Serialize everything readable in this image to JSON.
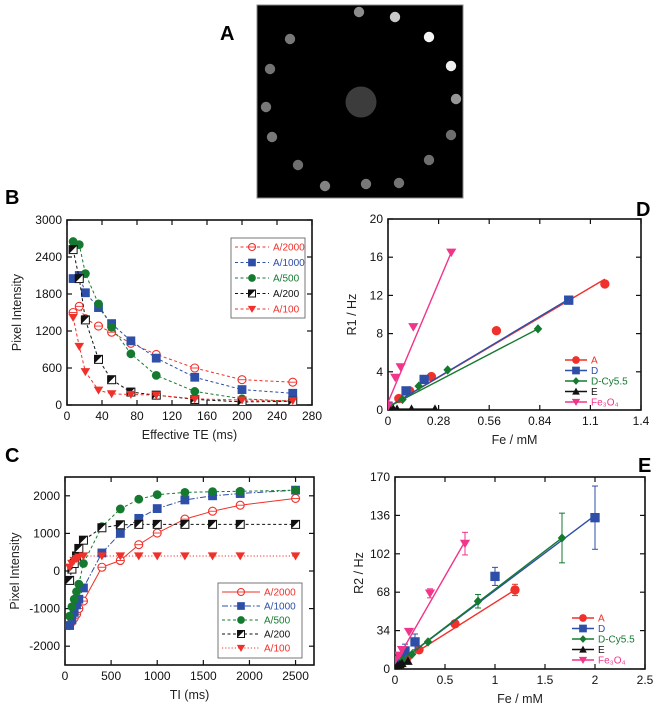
{
  "colors": {
    "red": "#f0302a",
    "red_light": "#f07070",
    "blue": "#2e4fa8",
    "green": "#157a30",
    "black": "#111111",
    "pink": "#f0358a"
  },
  "panel_a": {
    "letter": "A",
    "description": "Phantom MR image: dark background with ring of sample vials and central large disc",
    "spots": [
      {
        "gray": 140
      },
      {
        "gray": 200
      },
      {
        "gray": 245
      },
      {
        "gray": 240
      },
      {
        "gray": 150
      },
      {
        "gray": 110
      },
      {
        "gray": 110
      },
      {
        "gray": 115
      },
      {
        "gray": 120
      },
      {
        "gray": 130
      },
      {
        "gray": 110
      },
      {
        "gray": 120
      },
      {
        "gray": 120
      },
      {
        "gray": 115
      },
      {
        "gray": 120
      }
    ],
    "center_gray": 60
  },
  "chart_data": [
    {
      "id": "B",
      "letter": "B",
      "type": "scatter",
      "xlabel": "Effective TE (ms)",
      "ylabel": "Pixel Intensity",
      "xlim": [
        0,
        280
      ],
      "ylim": [
        0,
        3000
      ],
      "xticks": [
        0,
        40,
        80,
        120,
        160,
        200,
        240,
        280
      ],
      "yticks": [
        0,
        600,
        1200,
        1800,
        2400,
        3000
      ],
      "legend_position": "top-right",
      "series": [
        {
          "name": "A/2000",
          "color": "#f0302a",
          "marker": "open-circle-cross",
          "line": "dashed",
          "x": [
            7,
            14,
            21,
            36,
            51,
            73,
            102,
            146,
            200,
            258
          ],
          "y": [
            1500,
            1600,
            1400,
            1280,
            1180,
            1000,
            820,
            600,
            410,
            370
          ]
        },
        {
          "name": "A/1000",
          "color": "#2e4fa8",
          "marker": "square",
          "line": "dashed",
          "x": [
            7,
            14,
            21,
            36,
            51,
            73,
            102,
            146,
            200,
            258
          ],
          "y": [
            2050,
            2100,
            1820,
            1580,
            1320,
            1040,
            760,
            450,
            250,
            190
          ]
        },
        {
          "name": "A/500",
          "color": "#157a30",
          "marker": "circle",
          "line": "dashed",
          "x": [
            7,
            14,
            21,
            36,
            51,
            73,
            102,
            146,
            200,
            258
          ],
          "y": [
            2650,
            2600,
            2130,
            1640,
            1260,
            830,
            480,
            220,
            100,
            60
          ]
        },
        {
          "name": "A/200",
          "color": "#111111",
          "marker": "half-square",
          "line": "dashed",
          "x": [
            7,
            14,
            21,
            36,
            51,
            73,
            102,
            146,
            200,
            258
          ],
          "y": [
            2520,
            2050,
            1380,
            740,
            410,
            210,
            160,
            90,
            50,
            60
          ]
        },
        {
          "name": "A/100",
          "color": "#f0302a",
          "marker": "triangle-down",
          "line": "dashed",
          "x": [
            7,
            14,
            21,
            36,
            51,
            73,
            102,
            146,
            200,
            258
          ],
          "y": [
            1420,
            950,
            540,
            240,
            180,
            170,
            160,
            100,
            80,
            70
          ]
        }
      ]
    },
    {
      "id": "C",
      "letter": "C",
      "type": "scatter",
      "xlabel": "TI (ms)",
      "ylabel": "Pixel Intensity",
      "xlim": [
        0,
        2700
      ],
      "ylim": [
        -2500,
        2500
      ],
      "xticks": [
        0,
        500,
        1000,
        1500,
        2000,
        2500
      ],
      "yticks": [
        -2000,
        -1000,
        0,
        1000,
        2000
      ],
      "legend_position": "bottom-right",
      "series": [
        {
          "name": "A/2000",
          "color": "#f0302a",
          "marker": "open-circle-cross",
          "line": "solid",
          "x": [
            50,
            75,
            100,
            125,
            150,
            200,
            400,
            600,
            800,
            1000,
            1300,
            1600,
            1900,
            2500
          ],
          "y": [
            -1450,
            -1350,
            -1250,
            -1150,
            -1000,
            -800,
            100,
            280,
            700,
            1010,
            1380,
            1590,
            1750,
            1930
          ]
        },
        {
          "name": "A/1000",
          "color": "#2e4fa8",
          "marker": "square",
          "line": "dashdot",
          "x": [
            50,
            75,
            100,
            125,
            150,
            200,
            400,
            600,
            800,
            1000,
            1300,
            1600,
            1900,
            2500
          ],
          "y": [
            -1450,
            -1300,
            -1100,
            -900,
            -750,
            -450,
            480,
            1000,
            1400,
            1660,
            1890,
            2000,
            2060,
            2150
          ]
        },
        {
          "name": "A/500",
          "color": "#157a30",
          "marker": "circle",
          "line": "dashed",
          "x": [
            50,
            75,
            100,
            125,
            150,
            200,
            400,
            600,
            800,
            1000,
            1300,
            1600,
            1900,
            2500
          ],
          "y": [
            -1200,
            -950,
            -750,
            -550,
            -350,
            200,
            1180,
            1650,
            1910,
            2030,
            2090,
            2110,
            2120,
            2150
          ]
        },
        {
          "name": "A/200",
          "color": "#111111",
          "marker": "half-square",
          "line": "dashed",
          "x": [
            50,
            75,
            100,
            125,
            150,
            200,
            400,
            600,
            800,
            1000,
            1300,
            1600,
            1900,
            2500
          ],
          "y": [
            -250,
            50,
            200,
            400,
            600,
            820,
            1150,
            1230,
            1240,
            1240,
            1240,
            1240,
            1240,
            1240
          ]
        },
        {
          "name": "A/100",
          "color": "#f0302a",
          "marker": "triangle-down",
          "line": "dotted",
          "x": [
            50,
            75,
            100,
            125,
            150,
            200,
            400,
            600,
            800,
            1000,
            1300,
            1600,
            1900,
            2500
          ],
          "y": [
            100,
            200,
            280,
            330,
            370,
            400,
            400,
            400,
            400,
            400,
            400,
            400,
            400,
            400
          ]
        }
      ]
    },
    {
      "id": "D",
      "letter": "D",
      "type": "scatter",
      "xlabel": "Fe / mM",
      "ylabel": "R1 / Hz",
      "xlim": [
        0,
        1.4
      ],
      "ylim": [
        0,
        20
      ],
      "xticks": [
        "0",
        "0.28",
        "0.56",
        "0.84",
        "1.1",
        "1.4"
      ],
      "xtick_values": [
        0,
        0.28,
        0.56,
        0.84,
        1.12,
        1.4
      ],
      "yticks": [
        0,
        4,
        8,
        12,
        16,
        20
      ],
      "legend_position": "bottom-right",
      "series": [
        {
          "name": "A",
          "color": "#f0302a",
          "marker": "circle",
          "x": [
            0,
            0.06,
            0.12,
            0.24,
            0.6,
            1.2
          ],
          "y": [
            0.4,
            1.2,
            2.0,
            3.5,
            8.3,
            13.2
          ],
          "fit": [
            [
              0,
              0.3
            ],
            [
              1.2,
              13.7
            ]
          ]
        },
        {
          "name": "D",
          "color": "#2e4fa8",
          "marker": "square",
          "x": [
            0,
            0.1,
            0.2,
            1.0
          ],
          "y": [
            0.4,
            2.0,
            3.2,
            11.5
          ],
          "fit": [
            [
              0,
              0.3
            ],
            [
              1.0,
              11.6
            ]
          ]
        },
        {
          "name": "D-Cy5.5",
          "color": "#157a30",
          "marker": "diamond",
          "x": [
            0.08,
            0.17,
            0.33,
            0.83
          ],
          "y": [
            1.1,
            2.5,
            4.2,
            8.5
          ],
          "fit": [
            [
              0,
              0.3
            ],
            [
              0.83,
              8.5
            ]
          ]
        },
        {
          "name": "E",
          "color": "#111111",
          "marker": "triangle-up",
          "x": [
            0.01,
            0.03,
            0.05,
            0.13,
            0.26
          ],
          "y": [
            0.1,
            0.1,
            0.1,
            0.1,
            0.1
          ],
          "fit": [
            [
              0,
              0.1
            ],
            [
              0.26,
              0.1
            ]
          ]
        },
        {
          "name": "Fe3O4",
          "name_display": "Fe₃O₄",
          "color": "#f0358a",
          "marker": "triangle-down",
          "x": [
            0,
            0.04,
            0.07,
            0.14,
            0.35
          ],
          "y": [
            0.4,
            3.4,
            4.5,
            8.7,
            16.5
          ],
          "fit": [
            [
              0,
              0.8
            ],
            [
              0.35,
              16.5
            ]
          ]
        }
      ]
    },
    {
      "id": "E",
      "letter": "E",
      "type": "scatter",
      "xlabel": "Fe / mM",
      "ylabel": "R2 / Hz",
      "xlim": [
        0,
        2.5
      ],
      "ylim": [
        0,
        170
      ],
      "xticks": [
        "0",
        "0.5",
        "1",
        "1.5",
        "2",
        "2.5"
      ],
      "xtick_values": [
        0,
        0.5,
        1,
        1.5,
        2,
        2.5
      ],
      "yticks": [
        0,
        34,
        68,
        102,
        136,
        170
      ],
      "legend_position": "bottom-right",
      "series": [
        {
          "name": "A",
          "color": "#f0302a",
          "marker": "circle",
          "x": [
            0.03,
            0.06,
            0.12,
            0.24,
            0.6,
            1.2
          ],
          "y": [
            5,
            7,
            10,
            17,
            40,
            70
          ],
          "err": [
            0,
            0,
            0,
            0,
            0,
            5
          ],
          "fit": [
            [
              0,
              3
            ],
            [
              1.2,
              70
            ]
          ]
        },
        {
          "name": "D",
          "color": "#2e4fa8",
          "marker": "square",
          "x": [
            0,
            0.05,
            0.1,
            0.2,
            1.0,
            2.0
          ],
          "y": [
            3,
            10,
            16,
            24,
            82,
            134
          ],
          "err": [
            0,
            0,
            6,
            7,
            8,
            28
          ],
          "fit": [
            [
              0,
              3
            ],
            [
              2.0,
              136
            ]
          ]
        },
        {
          "name": "D-Cy5.5",
          "color": "#157a30",
          "marker": "diamond",
          "x": [
            0.08,
            0.17,
            0.33,
            0.83,
            1.67
          ],
          "y": [
            8,
            13,
            24,
            60,
            116
          ],
          "err": [
            0,
            0,
            0,
            6,
            22
          ],
          "fit": [
            [
              0,
              3
            ],
            [
              1.67,
              116
            ]
          ]
        },
        {
          "name": "E",
          "color": "#111111",
          "marker": "triangle-up",
          "x": [
            0.01,
            0.03,
            0.05,
            0.07,
            0.13
          ],
          "y": [
            2,
            3,
            4,
            5,
            7
          ],
          "err": [
            0,
            0,
            0,
            0,
            0
          ],
          "fit": [
            [
              0,
              1
            ],
            [
              0.13,
              7
            ]
          ]
        },
        {
          "name": "Fe3O4",
          "name_display": "Fe₃O₄",
          "color": "#f0358a",
          "marker": "triangle-down",
          "x": [
            0,
            0.04,
            0.07,
            0.14,
            0.35,
            0.7
          ],
          "y": [
            8,
            12,
            17,
            33,
            67,
            111
          ],
          "err": [
            0,
            0,
            0,
            0,
            4,
            10
          ],
          "fit": [
            [
              0,
              5
            ],
            [
              0.7,
              113
            ]
          ]
        }
      ]
    }
  ]
}
